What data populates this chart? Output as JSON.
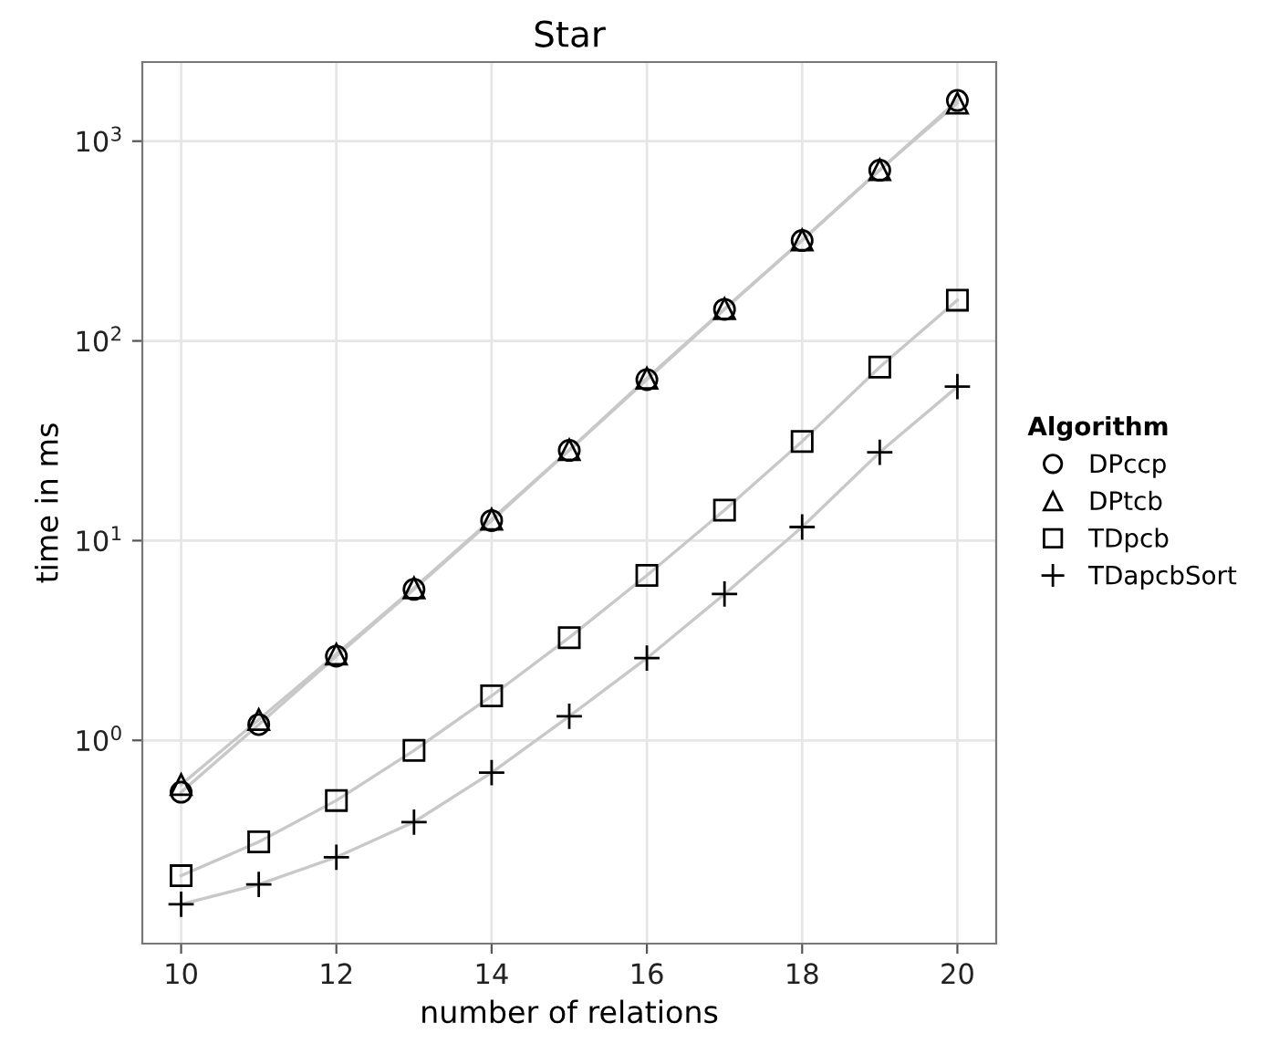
{
  "chart_data": {
    "type": "line",
    "title": "Star",
    "xlabel": "number of relations",
    "ylabel": "time in ms",
    "legend_title": "Algorithm",
    "legend": "right",
    "grid": true,
    "log": "y",
    "x": [
      10,
      11,
      12,
      13,
      14,
      15,
      16,
      17,
      18,
      19,
      20
    ],
    "xlim": [
      9.5,
      20.5
    ],
    "xticks": [
      10,
      12,
      14,
      16,
      18,
      20
    ],
    "ylim": [
      0.096,
      2490
    ],
    "yticks": [
      {
        "value": 1,
        "label": "10$^{0}$"
      },
      {
        "value": 10,
        "label": "10$^{1}$"
      },
      {
        "value": 100,
        "label": "10$^{2}$"
      },
      {
        "value": 1000,
        "label": "10$^{3}$"
      }
    ],
    "series": [
      {
        "name": "DPccp",
        "color": "#000000",
        "marker": "circle",
        "values": [
          0.55,
          1.2,
          2.64,
          5.7,
          12.6,
          28.3,
          64,
          144,
          318,
          715,
          1600
        ]
      },
      {
        "name": "DPtcb",
        "color": "#000000",
        "marker": "triangle",
        "values": [
          0.6,
          1.27,
          2.7,
          5.8,
          12.8,
          28.5,
          65,
          145,
          320,
          720,
          1550
        ]
      },
      {
        "name": "TDpcb",
        "color": "#000000",
        "marker": "square",
        "values": [
          0.21,
          0.31,
          0.5,
          0.89,
          1.67,
          3.27,
          6.7,
          14.2,
          31.4,
          74,
          160
        ]
      },
      {
        "name": "TDapcbSort",
        "color": "#000000",
        "marker": "cross",
        "values": [
          0.151,
          0.19,
          0.26,
          0.39,
          0.69,
          1.32,
          2.58,
          5.4,
          11.7,
          27.7,
          59
        ]
      }
    ]
  }
}
